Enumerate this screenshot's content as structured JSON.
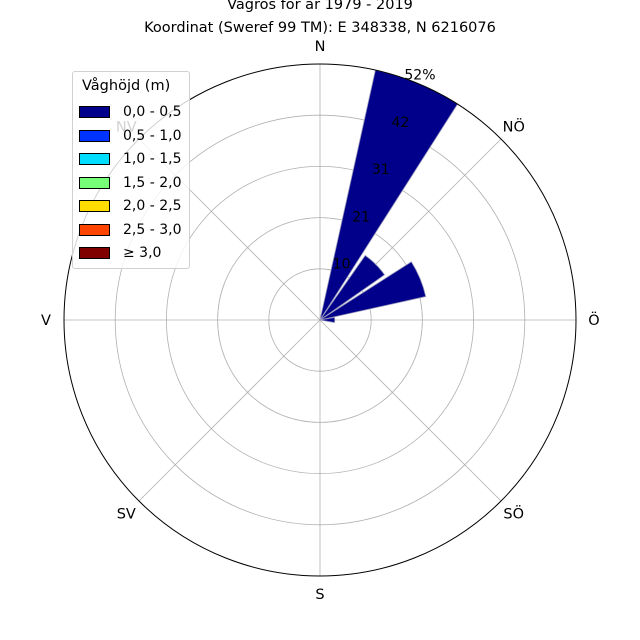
{
  "chart_data": {
    "type": "wind-rose",
    "title": "Vågros för år 1979 - 2019",
    "subtitle": "Koordinat (Sweref 99 TM): E 348338, N 6216076",
    "directions": [
      "N",
      "NÖ",
      "Ö",
      "SÖ",
      "S",
      "SV",
      "V",
      "NV"
    ],
    "radial_ticks": [
      "10",
      "21",
      "31",
      "42",
      "52%"
    ],
    "radial_max": 52,
    "legend_title": "Våghöjd (m)",
    "bins": [
      {
        "label": "0,0 - 0,5",
        "color": "#00008b"
      },
      {
        "label": "0,5 - 1,0",
        "color": "#0033ff"
      },
      {
        "label": "1,0 - 1,5",
        "color": "#00ddff"
      },
      {
        "label": "1,5 - 2,0",
        "color": "#77ff77"
      },
      {
        "label": "2,0 - 2,5",
        "color": "#ffdd00"
      },
      {
        "label": "2,5 - 3,0",
        "color": "#ff4400"
      },
      {
        "label": "≥ 3,0",
        "color": "#800000"
      }
    ],
    "sectors": [
      {
        "center_deg": 22.5,
        "values": [
          52,
          0,
          0,
          0,
          0,
          0,
          0
        ]
      },
      {
        "center_deg": 45,
        "values": [
          16,
          0,
          0,
          0,
          0,
          0,
          0
        ]
      },
      {
        "center_deg": 67.5,
        "values": [
          22,
          0,
          0,
          0,
          0,
          0,
          0
        ]
      },
      {
        "center_deg": 90,
        "values": [
          3,
          0,
          0,
          0,
          0,
          0,
          0
        ]
      }
    ],
    "sector_width_deg": 20,
    "grid": true,
    "legend_position": "top-left"
  }
}
